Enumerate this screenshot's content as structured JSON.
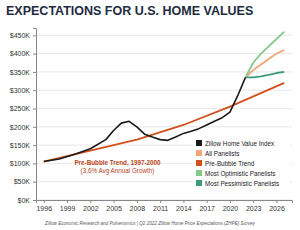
{
  "chart_data": {
    "type": "line",
    "title": "EXPECTATIONS FOR U.S. HOME VALUES",
    "annotations": [
      "Pre-Bubble Trend, 1997-2000",
      "(3.6% Avg Annual Growth)"
    ],
    "source": "Zillow Economic Research and Pulsenomics | Q2 2022 Zillow Home Price Expectations (ZHPE) Survey",
    "xlim": [
      1995,
      2028
    ],
    "xticks": [
      1996,
      1999,
      2002,
      2005,
      2008,
      2011,
      2014,
      2017,
      2020,
      2023,
      2026
    ],
    "ylim": [
      0,
      470
    ],
    "yticks": [
      {
        "value": 0,
        "label": "$0K"
      },
      {
        "value": 50,
        "label": "$50K"
      },
      {
        "value": 100,
        "label": "$100K"
      },
      {
        "value": 150,
        "label": "$150K"
      },
      {
        "value": 200,
        "label": "$200K"
      },
      {
        "value": 250,
        "label": "$250K"
      },
      {
        "value": 300,
        "label": "$300K"
      },
      {
        "value": 350,
        "label": "$350K"
      },
      {
        "value": 400,
        "label": "$400K"
      },
      {
        "value": 450,
        "label": "$450K"
      }
    ],
    "grid": true,
    "legend": "lower right",
    "series": [
      {
        "name": "Zillow Home Value Index",
        "color": "#1a1a1a",
        "x": [
          1996,
          1998,
          2000,
          2002,
          2004,
          2005,
          2006,
          2007,
          2008,
          2009,
          2010,
          2011,
          2012,
          2013,
          2014,
          2015,
          2016,
          2017,
          2018,
          2019,
          2020,
          2021,
          2022
        ],
        "values": [
          105,
          112,
          125,
          140,
          165,
          190,
          210,
          215,
          200,
          180,
          172,
          165,
          163,
          172,
          182,
          188,
          195,
          205,
          215,
          225,
          240,
          285,
          335
        ]
      },
      {
        "name": "All Panelists",
        "color": "#f0a57a",
        "x": [
          2022,
          2023,
          2024,
          2025,
          2026,
          2027
        ],
        "values": [
          335,
          355,
          370,
          385,
          400,
          410
        ]
      },
      {
        "name": "Pre-Bubble Trend",
        "color": "#d2501e",
        "x": [
          1996,
          2002,
          2008,
          2014,
          2020,
          2027
        ],
        "values": [
          105,
          135,
          165,
          205,
          255,
          320
        ]
      },
      {
        "name": "Most Optimistic Panelists",
        "color": "#84c98a",
        "x": [
          2022,
          2023,
          2024,
          2025,
          2026,
          2027
        ],
        "values": [
          335,
          375,
          400,
          420,
          440,
          460
        ]
      },
      {
        "name": "Most Pessimistic Panelists",
        "color": "#3c9a7c",
        "x": [
          2022,
          2023,
          2024,
          2025,
          2026,
          2027
        ],
        "values": [
          335,
          335,
          338,
          342,
          347,
          350
        ]
      }
    ]
  }
}
